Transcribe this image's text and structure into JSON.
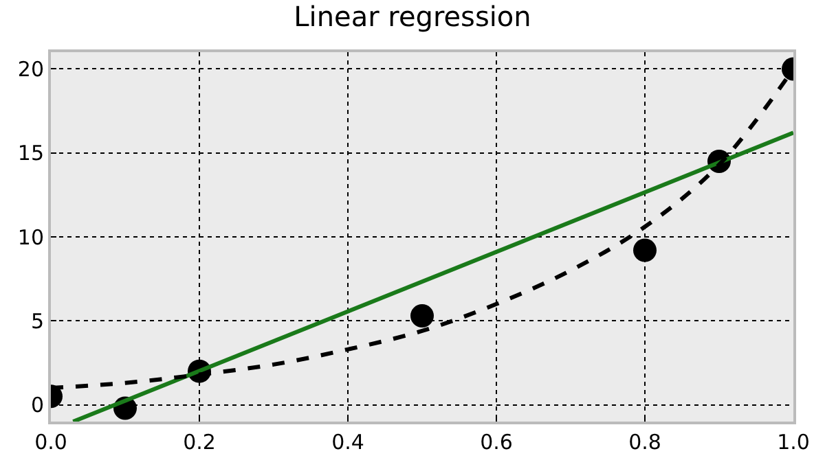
{
  "chart_data": {
    "type": "scatter",
    "title": "Linear regression",
    "series": [
      {
        "color": "#000000",
        "marker": "circle",
        "x": [
          0.0,
          0.1,
          0.2,
          0.5,
          0.8,
          0.9,
          1.0
        ],
        "values": [
          0.5,
          -0.2,
          2.0,
          5.3,
          9.2,
          14.5,
          20.0
        ]
      },
      {
        "type": "line",
        "color": "#1a7a1a",
        "line_style": "solid",
        "x": [
          0.03,
          1.0
        ],
        "values": [
          -1.0,
          16.2
        ]
      },
      {
        "type": "line",
        "color": "#000000",
        "line_style": "dashed",
        "x": [
          0.0,
          0.1,
          0.2,
          0.3,
          0.4,
          0.5,
          0.6,
          0.7,
          0.8,
          0.9,
          1.0
        ],
        "values": [
          1.0,
          1.3,
          1.8,
          2.4,
          3.3,
          4.4,
          6.0,
          8.0,
          10.6,
          14.3,
          20.0
        ]
      }
    ],
    "xlim": [
      0.0,
      1.0
    ],
    "xticks": [
      {
        "value": 0,
        "label": "0.0"
      },
      0.2,
      0.4,
      0.6,
      0.8,
      {
        "value": 1,
        "label": "1.0"
      }
    ],
    "ylim": [
      -1.0,
      21.0
    ],
    "yticks": [
      0,
      5,
      10,
      15,
      20
    ],
    "grid": true
  }
}
